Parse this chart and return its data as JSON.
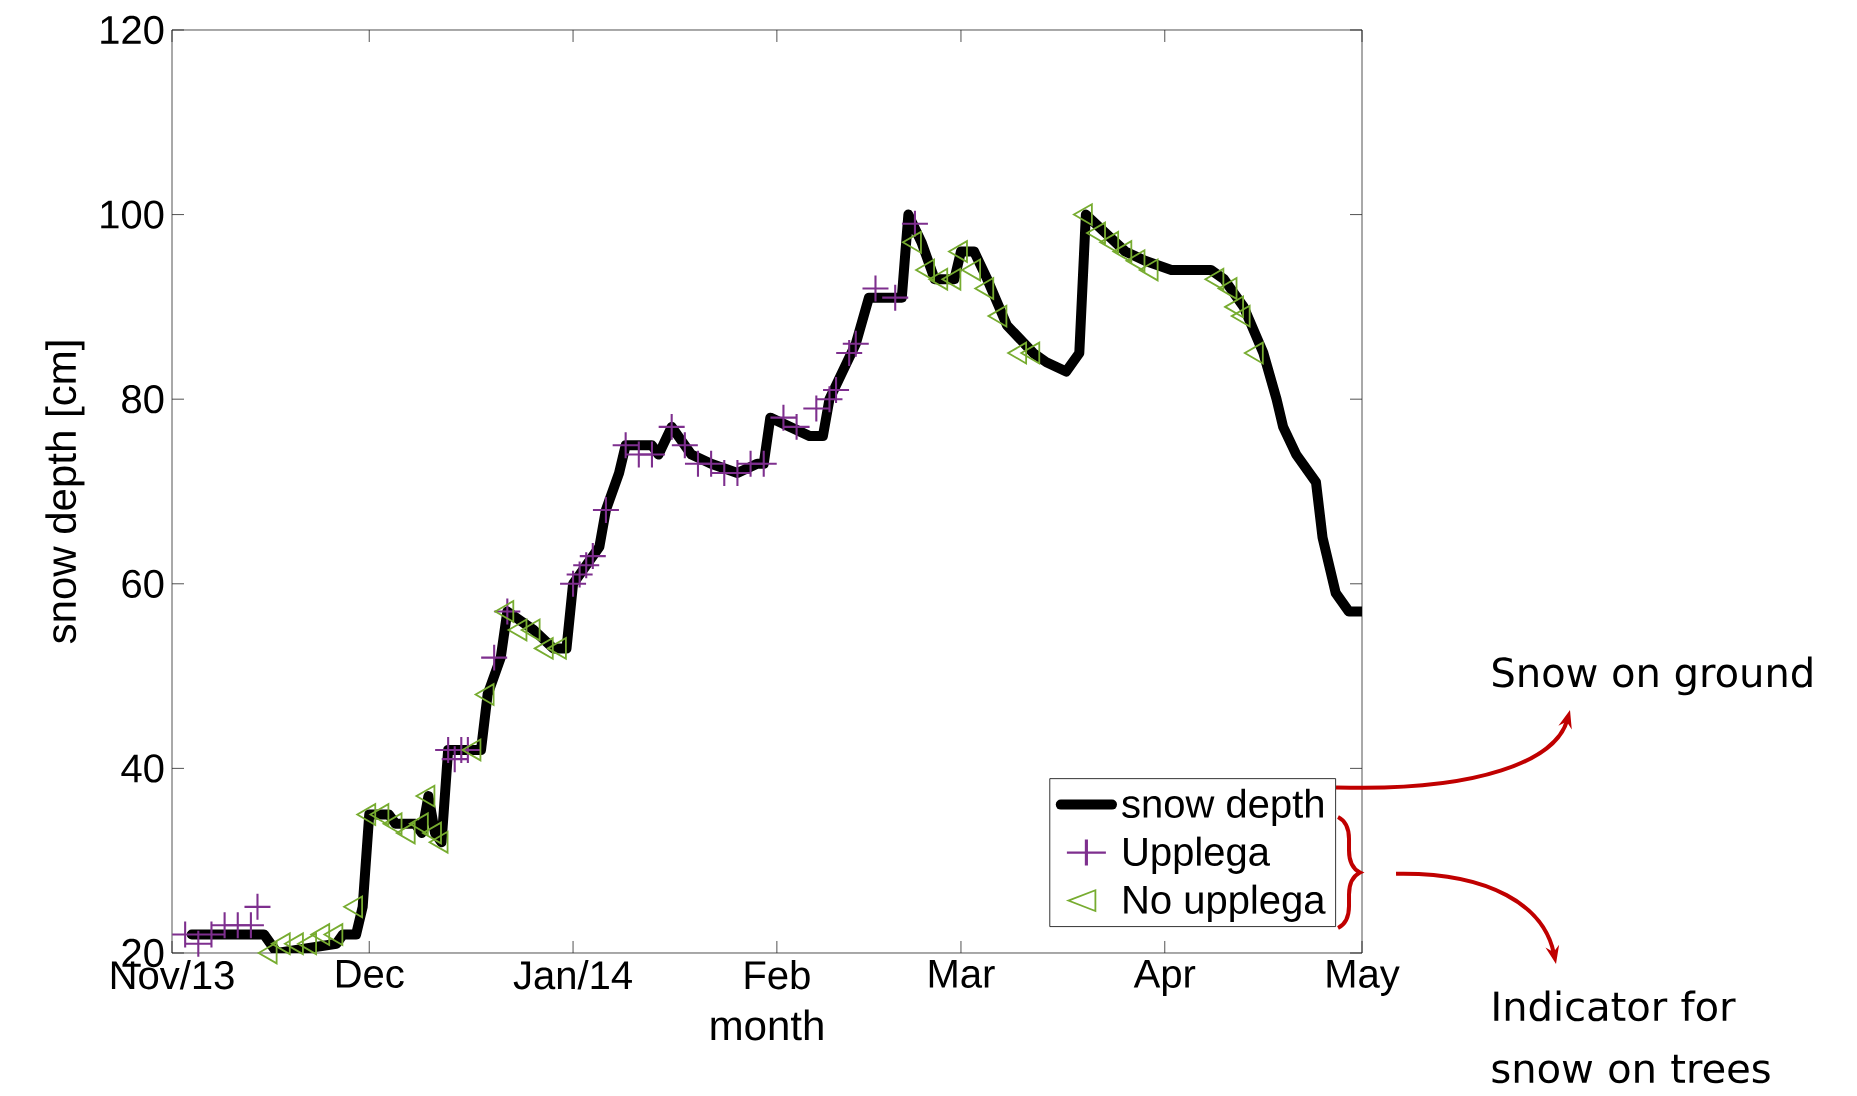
{
  "chart_data": {
    "type": "line",
    "xlabel": "month",
    "ylabel": "snow depth [cm]",
    "xlim": [
      "2013-11-01",
      "2014-05-01"
    ],
    "xticks": [
      {
        "value": "2013-11-01",
        "label": "Nov/13"
      },
      {
        "value": "2013-12-01",
        "label": "Dec"
      },
      {
        "value": "2014-01-01",
        "label": "Jan/14"
      },
      {
        "value": "2014-02-01",
        "label": "Feb"
      },
      {
        "value": "2014-03-01",
        "label": "Mar"
      },
      {
        "value": "2014-04-01",
        "label": "Apr"
      },
      {
        "value": "2014-05-01",
        "label": "May"
      }
    ],
    "ylim": [
      20,
      120
    ],
    "yticks": [
      20,
      40,
      60,
      80,
      100,
      120
    ],
    "legend": "bottom right",
    "series": [
      {
        "name": "snow depth",
        "color": "#000000",
        "marker": "none",
        "line_style": "solid",
        "x": [
          "2013-11-04",
          "2013-11-15",
          "2013-11-16",
          "2013-11-17",
          "2013-11-26",
          "2013-11-27",
          "2013-11-29",
          "2013-11-30",
          "2013-12-01",
          "2013-12-04",
          "2013-12-05",
          "2013-12-08",
          "2013-12-09",
          "2013-12-10",
          "2013-12-11",
          "2013-12-12",
          "2013-12-13",
          "2013-12-18",
          "2013-12-19",
          "2013-12-21",
          "2013-12-22",
          "2013-12-24",
          "2013-12-26",
          "2013-12-29",
          "2013-12-31",
          "2014-01-01",
          "2014-01-03",
          "2014-01-05",
          "2014-01-06",
          "2014-01-08",
          "2014-01-09",
          "2014-01-13",
          "2014-01-14",
          "2014-01-16",
          "2014-01-19",
          "2014-01-22",
          "2014-01-26",
          "2014-01-29",
          "2014-01-30",
          "2014-01-31",
          "2014-02-03",
          "2014-02-06",
          "2014-02-08",
          "2014-02-09",
          "2014-02-11",
          "2014-02-13",
          "2014-02-15",
          "2014-02-20",
          "2014-02-21",
          "2014-02-23",
          "2014-02-25",
          "2014-02-28",
          "2014-03-01",
          "2014-03-03",
          "2014-03-05",
          "2014-03-08",
          "2014-03-12",
          "2014-03-14",
          "2014-03-17",
          "2014-03-19",
          "2014-03-20",
          "2014-03-23",
          "2014-03-26",
          "2014-03-29",
          "2014-04-02",
          "2014-04-08",
          "2014-04-10",
          "2014-04-13",
          "2014-04-16",
          "2014-04-18",
          "2014-04-19",
          "2014-04-21",
          "2014-04-24",
          "2014-04-25",
          "2014-04-26",
          "2014-04-27",
          "2014-04-29",
          "2014-05-01"
        ],
        "values": [
          22,
          22,
          21,
          20,
          21,
          22,
          22,
          25,
          35,
          35,
          34,
          34,
          33,
          37,
          33,
          32,
          42,
          42,
          48,
          52,
          57,
          56,
          55,
          53,
          53,
          60,
          62,
          64,
          68,
          72,
          75,
          75,
          74,
          77,
          74,
          73,
          72,
          73,
          73,
          78,
          77,
          76,
          76,
          80,
          83,
          86,
          91,
          91,
          100,
          97,
          93,
          93,
          96,
          96,
          93,
          88,
          85,
          84,
          83,
          85,
          100,
          98,
          96,
          95,
          94,
          94,
          93,
          90,
          85,
          80,
          77,
          74,
          71,
          65,
          62,
          59,
          57,
          57
        ]
      },
      {
        "name": "Upplega",
        "type": "scatter",
        "color": "#7e2f8e",
        "marker": "cross",
        "x": [
          "2013-11-03",
          "2013-11-05",
          "2013-11-07",
          "2013-11-09",
          "2013-11-11",
          "2013-11-13",
          "2013-11-14",
          "2013-12-13",
          "2013-12-14",
          "2013-12-15",
          "2013-12-16",
          "2013-12-20",
          "2013-12-22",
          "2014-01-01",
          "2014-01-02",
          "2014-01-03",
          "2014-01-04",
          "2014-01-06",
          "2014-01-09",
          "2014-01-11",
          "2014-01-13",
          "2014-01-16",
          "2014-01-18",
          "2014-01-20",
          "2014-01-22",
          "2014-01-24",
          "2014-01-26",
          "2014-01-28",
          "2014-01-30",
          "2014-02-02",
          "2014-02-04",
          "2014-02-07",
          "2014-02-09",
          "2014-02-10",
          "2014-02-12",
          "2014-02-13",
          "2014-02-16",
          "2014-02-19",
          "2014-02-22"
        ],
        "values": [
          22,
          21,
          22,
          23,
          23,
          23,
          25,
          42,
          41,
          42,
          42,
          52,
          57,
          60,
          61,
          62,
          63,
          68,
          75,
          74,
          74,
          77,
          75,
          73,
          73,
          72,
          72,
          73,
          73,
          78,
          77,
          79,
          80,
          81,
          85,
          86,
          92,
          91,
          99
        ]
      },
      {
        "name": "No upplega",
        "type": "scatter",
        "color": "#77ac30",
        "marker": "triangle",
        "x": [
          "2013-11-16",
          "2013-11-18",
          "2013-11-20",
          "2013-11-22",
          "2013-11-24",
          "2013-11-26",
          "2013-11-29",
          "2013-12-01",
          "2013-12-03",
          "2013-12-05",
          "2013-12-07",
          "2013-12-09",
          "2013-12-10",
          "2013-12-11",
          "2013-12-12",
          "2013-12-17",
          "2013-12-19",
          "2013-12-22",
          "2013-12-24",
          "2013-12-26",
          "2013-12-28",
          "2013-12-30",
          "2014-02-22",
          "2014-02-24",
          "2014-02-26",
          "2014-02-28",
          "2014-03-01",
          "2014-03-03",
          "2014-03-05",
          "2014-03-07",
          "2014-03-10",
          "2014-03-12",
          "2014-03-20",
          "2014-03-22",
          "2014-03-24",
          "2014-03-26",
          "2014-03-28",
          "2014-03-30",
          "2014-04-09",
          "2014-04-11",
          "2014-04-12",
          "2014-04-13",
          "2014-04-15"
        ],
        "values": [
          20,
          21,
          21,
          21,
          22,
          22,
          25,
          35,
          35,
          34,
          33,
          34,
          37,
          33,
          32,
          42,
          48,
          57,
          55,
          55,
          53,
          53,
          97,
          94,
          93,
          93,
          96,
          94,
          92,
          89,
          85,
          85,
          100,
          98,
          97,
          96,
          95,
          94,
          93,
          92,
          90,
          89,
          85
        ]
      }
    ],
    "annotations": [
      "Snow on ground",
      "Indicator for snow on trees"
    ]
  }
}
